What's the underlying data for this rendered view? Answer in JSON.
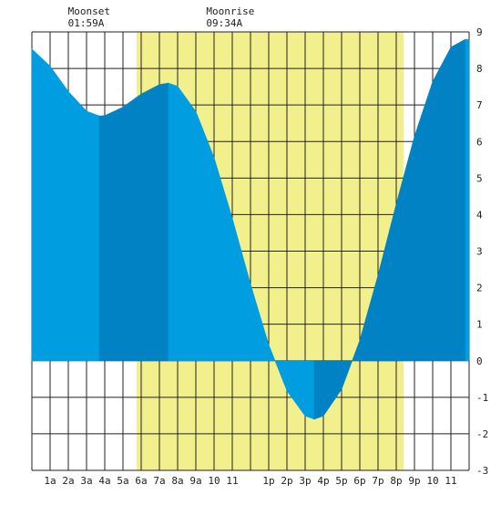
{
  "chart_data": {
    "type": "area",
    "x": [
      0,
      1,
      2,
      3,
      3.7,
      4,
      5,
      6,
      7,
      7.5,
      8,
      9,
      10,
      11,
      12,
      13,
      14,
      15,
      15.5,
      16,
      17,
      18,
      19,
      20,
      21,
      22,
      23,
      23.8,
      24
    ],
    "values": [
      8.53,
      8.06,
      7.37,
      6.83,
      6.7,
      6.71,
      6.94,
      7.3,
      7.56,
      7.6,
      7.51,
      6.82,
      5.56,
      3.9,
      2.1,
      0.44,
      -0.82,
      -1.51,
      -1.6,
      -1.51,
      -0.78,
      0.56,
      2.34,
      4.29,
      6.14,
      7.64,
      8.58,
      8.8,
      8.78
    ],
    "color": "#009de0",
    "rising_color": "#0082c4",
    "daylight": {
      "start": 5.75,
      "end": 20.4,
      "color": "#f2f08c"
    },
    "xlim": [
      0,
      24
    ],
    "xticks": [
      {
        "value": 1,
        "label": "1a"
      },
      {
        "value": 2,
        "label": "2a"
      },
      {
        "value": 3,
        "label": "3a"
      },
      {
        "value": 4,
        "label": "4a"
      },
      {
        "value": 5,
        "label": "5a"
      },
      {
        "value": 6,
        "label": "6a"
      },
      {
        "value": 7,
        "label": "7a"
      },
      {
        "value": 8,
        "label": "8a"
      },
      {
        "value": 9,
        "label": "9a"
      },
      10,
      11,
      {
        "value": 12,
        "label": null
      },
      {
        "value": 13,
        "label": "1p"
      },
      {
        "value": 14,
        "label": "2p"
      },
      {
        "value": 15,
        "label": "3p"
      },
      {
        "value": 16,
        "label": "4p"
      },
      {
        "value": 17,
        "label": "5p"
      },
      {
        "value": 18,
        "label": "6p"
      },
      {
        "value": 19,
        "label": "7p"
      },
      {
        "value": 20,
        "label": "8p"
      },
      {
        "value": 21,
        "label": "9p"
      },
      {
        "value": 22,
        "label": "10"
      },
      {
        "value": 23,
        "label": "11"
      }
    ],
    "ylim": [
      -3,
      9
    ],
    "yticks": [
      -3,
      -2,
      -1,
      0,
      1,
      2,
      3,
      4,
      5,
      6,
      7,
      8,
      9
    ],
    "grid": true,
    "annotations": [
      {
        "label": "Moonset",
        "time": {
          "value": 1.98,
          "label": "01:59A"
        }
      },
      {
        "label": "Moonrise",
        "time": {
          "value": 9.57,
          "label": "09:34A"
        }
      }
    ]
  }
}
